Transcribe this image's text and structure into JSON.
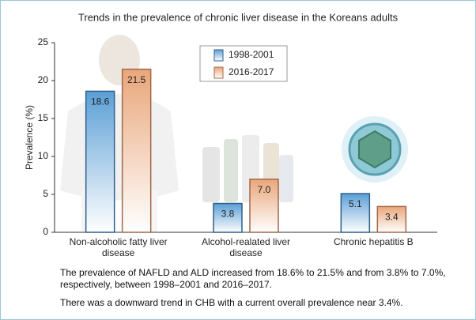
{
  "chart_data": {
    "type": "bar",
    "title": "Trends in the prevalence of chronic liver disease in the Koreans adults",
    "y_label": "Prevalence (%)",
    "categories": [
      "Non-alcoholic fatty liver disease",
      "Alcohol-realated liver disease",
      "Chronic hepatitis B"
    ],
    "series": [
      {
        "name": "1998-2001",
        "color": "#5b9fd6",
        "values": [
          18.6,
          3.8,
          5.1
        ]
      },
      {
        "name": "2016-2017",
        "color": "#e9a67a",
        "values": [
          21.5,
          7.0,
          3.4
        ],
        "value_labels": [
          "21.5",
          "7.0",
          "3.4"
        ]
      }
    ],
    "ylim": [
      0,
      25
    ],
    "yticks": [
      0,
      5,
      10,
      15,
      20,
      25
    ],
    "grid": false,
    "legend": "top",
    "captions": [
      "The prevalence of NAFLD and ALD increased from 18.6% to 21.5% and from 3.8% to 7.0%, respectively, between 1998–2001 and 2016–2017.",
      "There was a downward trend in CHB with a current overall prevalence near 3.4%."
    ]
  }
}
